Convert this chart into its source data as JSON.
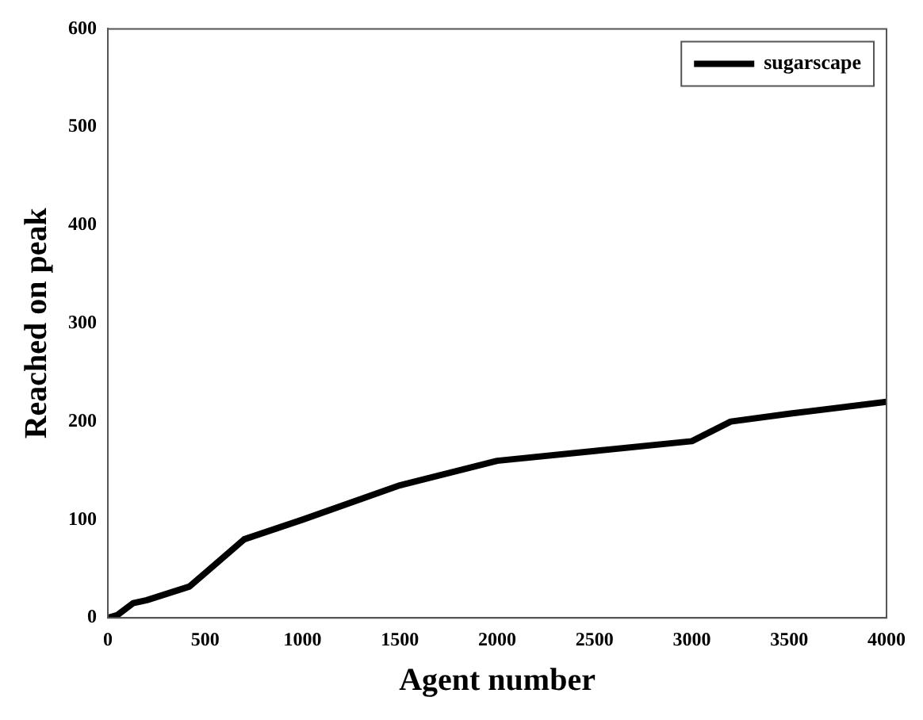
{
  "chart_data": {
    "type": "line",
    "xlabel": "Agent number",
    "ylabel": "Reached on peak",
    "x": [
      0,
      50,
      130,
      200,
      420,
      700,
      1000,
      1500,
      2000,
      2500,
      3000,
      3200,
      3500,
      4000
    ],
    "series": [
      {
        "name": "sugarscape",
        "color": "#000000",
        "values": [
          0,
          3,
          15,
          18,
          32,
          80,
          100,
          135,
          160,
          170,
          180,
          200,
          208,
          220
        ]
      }
    ],
    "xlim": [
      0,
      4000
    ],
    "xticks": [
      0,
      500,
      1000,
      1500,
      2000,
      2500,
      3000,
      3500,
      4000
    ],
    "ylim": [
      0,
      600
    ],
    "yticks": [
      0,
      100,
      200,
      300,
      400,
      500,
      600
    ],
    "grid": false,
    "legend": "top right",
    "marker": "none",
    "line_style": "solid"
  }
}
